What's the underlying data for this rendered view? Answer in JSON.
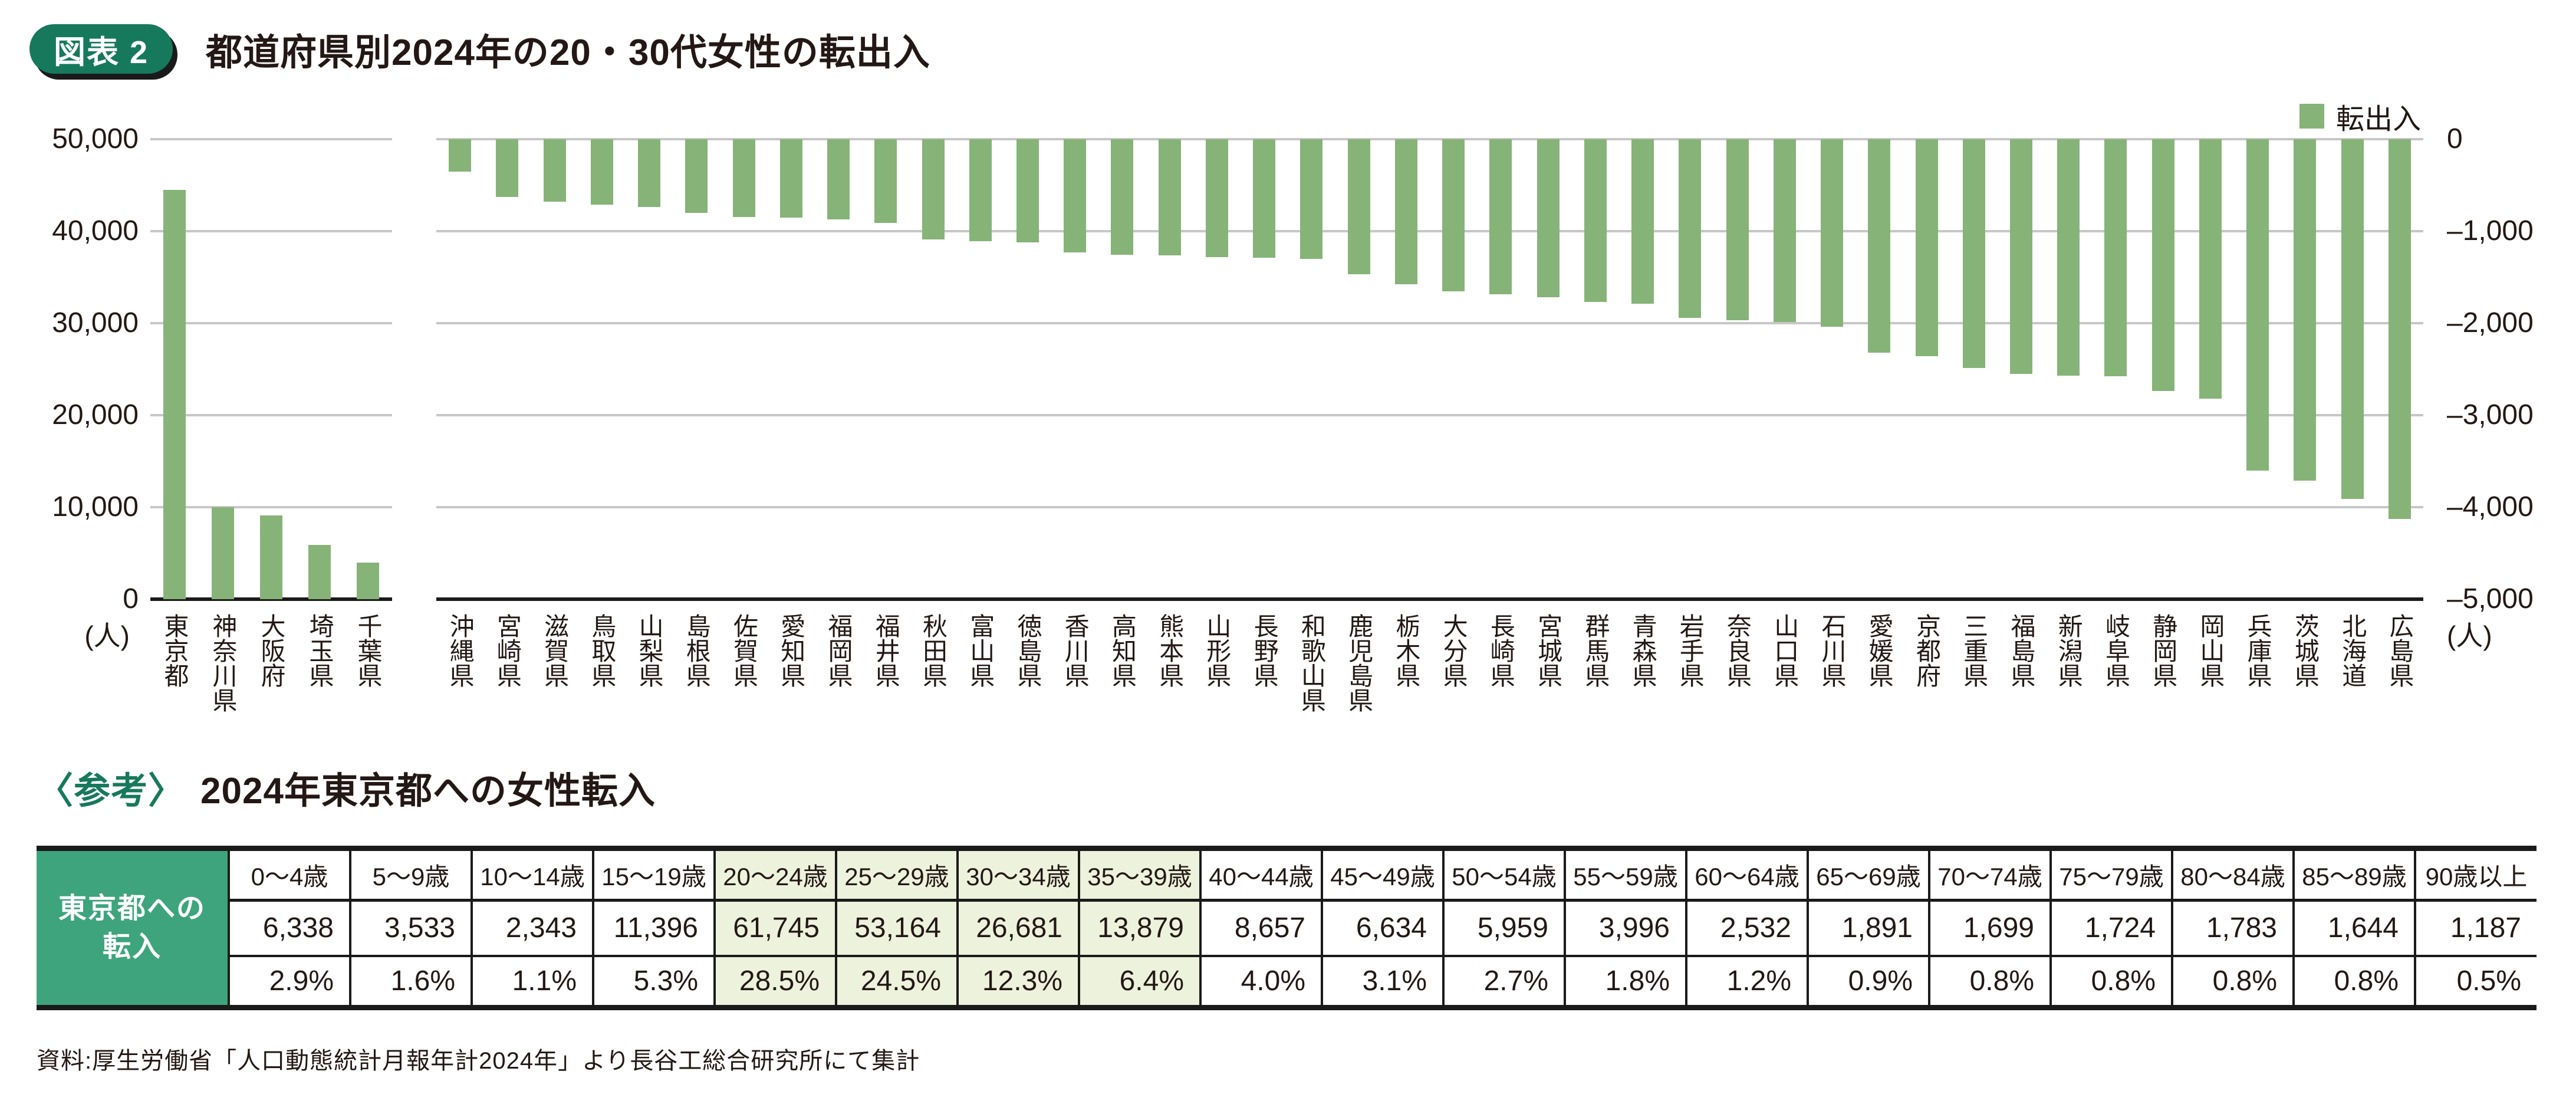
{
  "figure": {
    "badge": "図表 2",
    "title": "都道府県別2024年の20・30代女性の転出入"
  },
  "chart": {
    "legend_label": "転出入",
    "left_unit": "(人)",
    "right_unit": "(人)",
    "left_ticks": [
      "50,000",
      "40,000",
      "30,000",
      "20,000",
      "10,000",
      "0"
    ],
    "right_ticks": [
      "0",
      "–1,000",
      "–2,000",
      "–3,000",
      "–4,000",
      "–5,000"
    ]
  },
  "chart_data": {
    "type": "bar",
    "title": "都道府県別2024年の20・30代女性の転出入",
    "legend": [
      "転出入"
    ],
    "grid": true,
    "bar_color": "#86B377",
    "dual_axis": true,
    "left_axis": {
      "unit": "人",
      "range": [
        0,
        50000
      ],
      "tick_interval": 10000
    },
    "right_axis": {
      "unit": "人",
      "range": [
        -5000,
        0
      ],
      "tick_interval": 1000
    },
    "groups": [
      {
        "axis": "left",
        "categories": [
          "東京都",
          "神奈川県",
          "大阪府",
          "埼玉県",
          "千葉県"
        ],
        "values": [
          44500,
          10000,
          9100,
          5900,
          4000
        ]
      },
      {
        "axis": "right",
        "categories": [
          "沖縄県",
          "宮崎県",
          "滋賀県",
          "鳥取県",
          "山梨県",
          "島根県",
          "佐賀県",
          "愛知県",
          "福岡県",
          "福井県",
          "秋田県",
          "富山県",
          "徳島県",
          "香川県",
          "高知県",
          "熊本県",
          "山形県",
          "長野県",
          "和歌山県",
          "鹿児島県",
          "栃木県",
          "大分県",
          "長崎県",
          "宮城県",
          "群馬県",
          "青森県",
          "岩手県",
          "奈良県",
          "山口県",
          "石川県",
          "愛媛県",
          "京都府",
          "三重県",
          "福島県",
          "新潟県",
          "岐阜県",
          "静岡県",
          "岡山県",
          "兵庫県",
          "茨城県",
          "北海道",
          "広島県"
        ],
        "values": [
          -350,
          -630,
          -680,
          -710,
          -740,
          -800,
          -845,
          -855,
          -870,
          -910,
          -1090,
          -1110,
          -1120,
          -1230,
          -1255,
          -1265,
          -1280,
          -1290,
          -1300,
          -1470,
          -1580,
          -1655,
          -1685,
          -1715,
          -1770,
          -1790,
          -1940,
          -1970,
          -1990,
          -2040,
          -2320,
          -2360,
          -2490,
          -2550,
          -2570,
          -2580,
          -2740,
          -2820,
          -3600,
          -3710,
          -3910,
          -4130
        ]
      }
    ]
  },
  "reference": {
    "badge": "〈参考〉",
    "title": "2024年東京都への女性転入",
    "table": {
      "row_label": "東京都への転入",
      "row_label_lines": [
        "東京都への",
        "転入"
      ],
      "columns": [
        "0〜4歳",
        "5〜9歳",
        "10〜14歳",
        "15〜19歳",
        "20〜24歳",
        "25〜29歳",
        "30〜34歳",
        "35〜39歳",
        "40〜44歳",
        "45〜49歳",
        "50〜54歳",
        "55〜59歳",
        "60〜64歳",
        "65〜69歳",
        "70〜74歳",
        "75〜79歳",
        "80〜84歳",
        "85〜89歳",
        "90歳以上"
      ],
      "highlighted_age_groups": [
        "20〜24歳",
        "25〜29歳",
        "30〜34歳",
        "35〜39歳"
      ],
      "counts": [
        "6,338",
        "3,533",
        "2,343",
        "11,396",
        "61,745",
        "53,164",
        "26,681",
        "13,879",
        "8,657",
        "6,634",
        "5,959",
        "3,996",
        "2,532",
        "1,891",
        "1,699",
        "1,724",
        "1,783",
        "1,644",
        "1,187"
      ],
      "percents": [
        "2.9%",
        "1.6%",
        "1.1%",
        "5.3%",
        "28.5%",
        "24.5%",
        "12.3%",
        "6.4%",
        "4.0%",
        "3.1%",
        "2.7%",
        "1.8%",
        "1.2%",
        "0.9%",
        "0.8%",
        "0.8%",
        "0.8%",
        "0.8%",
        "0.5%"
      ]
    }
  },
  "source": "資料:厚生労働省「人口動態統計月報年計2024年」より長谷工総合研究所にて集計"
}
